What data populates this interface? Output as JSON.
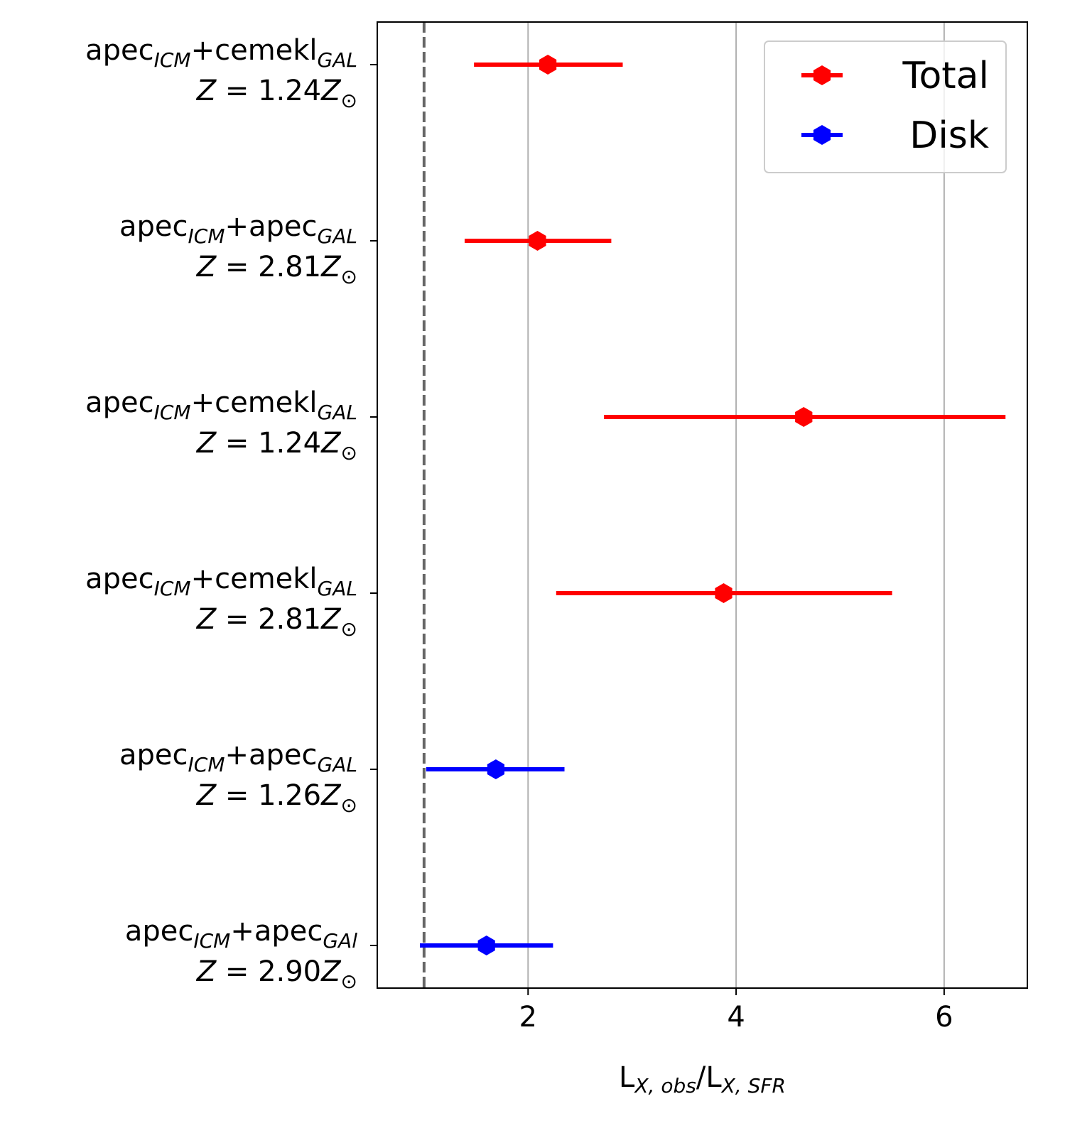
{
  "chart_data": {
    "type": "errorbar",
    "orientation": "horizontal",
    "xlabel": {
      "main1": "L",
      "sub1": "X, obs",
      "slash": "/",
      "main2": "L",
      "sub2": "X, SFR"
    },
    "xlim": [
      0.55,
      6.8
    ],
    "xticks": [
      2,
      4,
      6
    ],
    "xtick_labels": [
      "2",
      "4",
      "6"
    ],
    "grid": "x",
    "reference_line": {
      "x": 1.0,
      "style": "dashed",
      "color": "#666666"
    },
    "legend": {
      "position": "top-right",
      "entries": [
        {
          "label": "Total",
          "color": "#ff0000"
        },
        {
          "label": "Disk",
          "color": "#0000ff"
        }
      ]
    },
    "categories": [
      {
        "model": {
          "a": "apec",
          "a_sub": "ICM",
          "plus": "+",
          "b": "cemekl",
          "b_sub": "GAL"
        },
        "z": {
          "sym": "Z",
          "eq": " = ",
          "val": "1.24",
          "zsym": "Z",
          "sun": "⊙"
        }
      },
      {
        "model": {
          "a": "apec",
          "a_sub": "ICM",
          "plus": "+",
          "b": "apec",
          "b_sub": "GAL"
        },
        "z": {
          "sym": "Z",
          "eq": " = ",
          "val": "2.81",
          "zsym": "Z",
          "sun": "⊙"
        }
      },
      {
        "model": {
          "a": "apec",
          "a_sub": "ICM",
          "plus": "+",
          "b": "cemekl",
          "b_sub": "GAL"
        },
        "z": {
          "sym": "Z",
          "eq": " = ",
          "val": "1.24",
          "zsym": "Z",
          "sun": "⊙"
        }
      },
      {
        "model": {
          "a": "apec",
          "a_sub": "ICM",
          "plus": "+",
          "b": "cemekl",
          "b_sub": "GAL"
        },
        "z": {
          "sym": "Z",
          "eq": " = ",
          "val": "2.81",
          "zsym": "Z",
          "sun": "⊙"
        }
      },
      {
        "model": {
          "a": "apec",
          "a_sub": "ICM",
          "plus": "+",
          "b": "apec",
          "b_sub": "GAL"
        },
        "z": {
          "sym": "Z",
          "eq": " = ",
          "val": "1.26",
          "zsym": "Z",
          "sun": "⊙"
        }
      },
      {
        "model": {
          "a": "apec",
          "a_sub": "ICM",
          "plus": "+",
          "b": "apec",
          "b_sub": "GAl"
        },
        "z": {
          "sym": "Z",
          "eq": " = ",
          "val": "2.90",
          "zsym": "Z",
          "sun": "⊙"
        }
      }
    ],
    "series": [
      {
        "name": "Total",
        "color": "#ff0000",
        "points": [
          {
            "index": 0,
            "value": 2.19,
            "low": 1.48,
            "high": 2.91
          },
          {
            "index": 1,
            "value": 2.09,
            "low": 1.39,
            "high": 2.8
          },
          {
            "index": 2,
            "value": 4.65,
            "low": 2.73,
            "high": 6.59
          },
          {
            "index": 3,
            "value": 3.88,
            "low": 2.27,
            "high": 5.5
          }
        ]
      },
      {
        "name": "Disk",
        "color": "#0000ff",
        "points": [
          {
            "index": 4,
            "value": 1.69,
            "low": 1.02,
            "high": 2.35
          },
          {
            "index": 5,
            "value": 1.6,
            "low": 0.96,
            "high": 2.24
          }
        ]
      }
    ]
  }
}
